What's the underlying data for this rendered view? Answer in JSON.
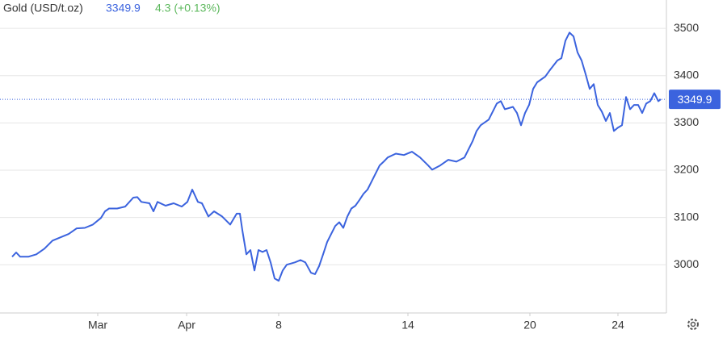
{
  "chart_data": {
    "type": "line",
    "title": "Gold (USD/t.oz)",
    "price": 3349.9,
    "change": "4.3 (+0.13%)",
    "color": "#3b63de",
    "grid": true,
    "x": [
      1.5,
      2.0,
      2.5,
      3.5,
      4.5,
      5.5,
      6.5,
      7.5,
      8.5,
      9.5,
      10.5,
      11.5,
      12.5,
      13.0,
      13.5,
      14.5,
      15.5,
      16.5,
      17.0,
      17.5,
      18.5,
      19.0,
      19.5,
      20.5,
      21.5,
      22.5,
      23.2,
      23.8,
      24.5,
      25.0,
      25.8,
      26.5,
      27.5,
      28.5,
      29.3,
      29.7,
      30.0,
      30.5,
      31.0,
      31.5,
      32.0,
      32.5,
      33.0,
      33.5,
      34.0,
      34.5,
      35.0,
      35.5,
      36.5,
      37.2,
      37.8,
      38.5,
      39.0,
      39.5,
      40.0,
      40.5,
      41.0,
      41.5,
      42.0,
      42.5,
      43.0,
      43.5,
      44.0,
      44.5,
      45.0,
      45.5,
      46.0,
      46.5,
      47.0,
      47.5,
      48.0,
      49.0,
      50.0,
      51.0,
      52.0,
      53.0,
      53.5,
      54.5,
      55.5,
      56.5,
      57.5,
      58.0,
      58.5,
      59.0,
      59.5,
      60.5,
      61.5,
      62.0,
      62.5,
      63.5,
      64.0,
      64.5,
      65.0,
      65.5,
      66.0,
      66.5,
      67.5,
      68.0,
      69.0,
      69.5,
      70.0,
      70.5,
      71.0,
      71.5,
      72.0,
      72.5,
      73.0,
      73.5,
      74.0,
      74.5,
      75.0,
      75.5,
      76.0,
      76.5,
      77.0,
      77.5,
      78.0,
      78.5,
      79.0,
      79.5,
      80.0,
      80.5,
      81.0,
      81.5,
      81.8
    ],
    "values": [
      3017,
      3026,
      3017,
      3017,
      3022,
      3034,
      3051,
      3058,
      3065,
      3077,
      3078,
      3085,
      3099,
      3113,
      3119,
      3119,
      3123,
      3142,
      3143,
      3133,
      3130,
      3113,
      3133,
      3125,
      3130,
      3123,
      3133,
      3159,
      3133,
      3130,
      3102,
      3113,
      3102,
      3085,
      3108,
      3108,
      3073,
      3022,
      3031,
      2988,
      3031,
      3027,
      3031,
      3005,
      2971,
      2966,
      2988,
      3000,
      3005,
      3010,
      3005,
      2983,
      2980,
      2997,
      3022,
      3048,
      3065,
      3082,
      3090,
      3078,
      3102,
      3119,
      3125,
      3137,
      3150,
      3159,
      3176,
      3193,
      3210,
      3218,
      3227,
      3235,
      3232,
      3239,
      3227,
      3210,
      3201,
      3210,
      3222,
      3218,
      3227,
      3244,
      3261,
      3283,
      3295,
      3307,
      3341,
      3346,
      3329,
      3334,
      3321,
      3295,
      3321,
      3338,
      3372,
      3386,
      3398,
      3410,
      3432,
      3437,
      3474,
      3491,
      3483,
      3449,
      3432,
      3403,
      3372,
      3382,
      3338,
      3324,
      3304,
      3321,
      3283,
      3290,
      3295,
      3355,
      3329,
      3338,
      3338,
      3321,
      3341,
      3346,
      3363,
      3346,
      3349.9
    ],
    "xlim": [
      0,
      82.5
    ],
    "ylim": [
      2898,
      3560
    ],
    "xticks": [
      {
        "value": 12.1,
        "label": "Mar"
      },
      {
        "value": 23.1,
        "label": "Apr"
      },
      {
        "value": 34.5,
        "label": "8"
      },
      {
        "value": 50.5,
        "label": "14"
      },
      {
        "value": 65.6,
        "label": "20"
      },
      {
        "value": 76.5,
        "label": "24"
      }
    ],
    "yticks": [
      3000,
      3100,
      3200,
      3300,
      3400,
      3500
    ]
  }
}
